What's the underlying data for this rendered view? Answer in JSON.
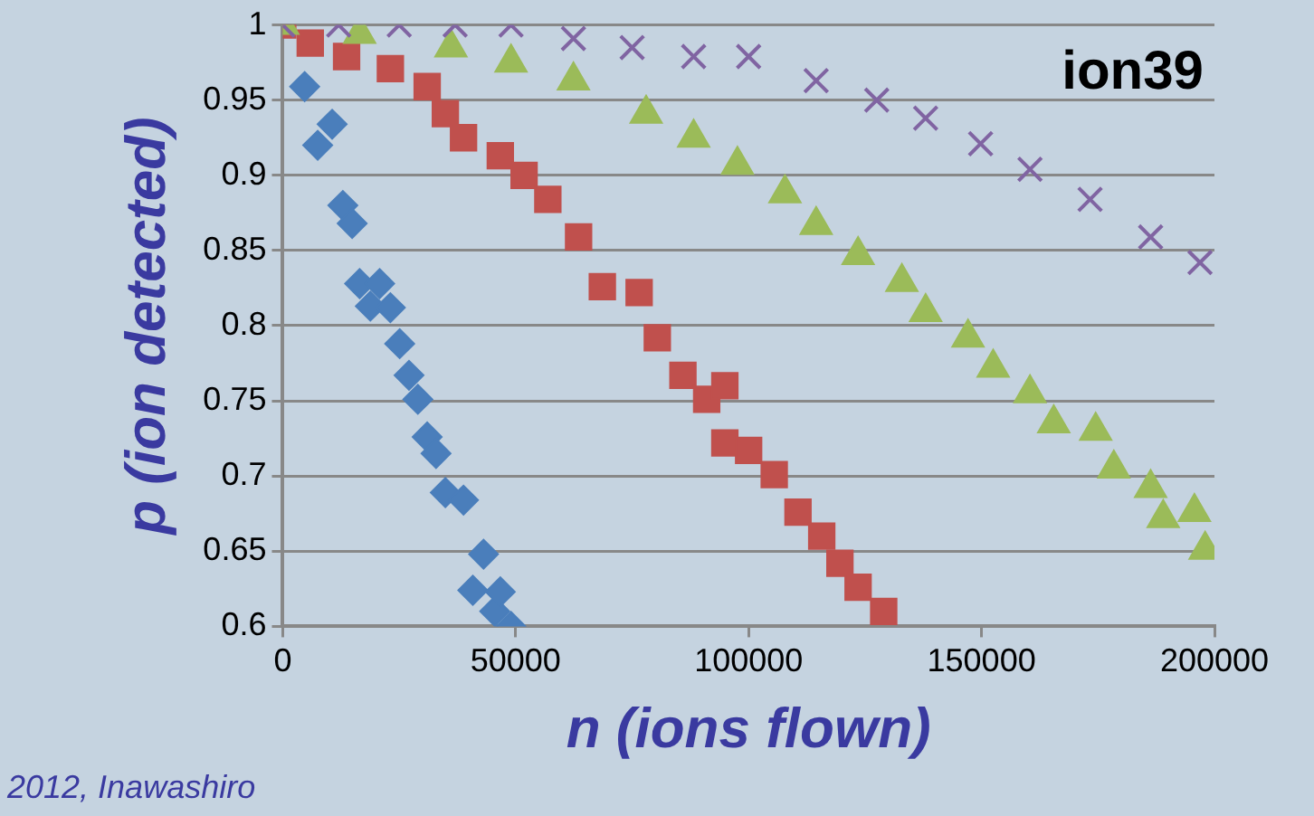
{
  "chart_data": {
    "type": "scatter",
    "title": "ion39",
    "xlabel": "n (ions flown)",
    "ylabel": "p (ion detected)",
    "annotations": [
      "2012, Inawashiro"
    ],
    "xlim": [
      0,
      200000
    ],
    "xticks": [
      0,
      50000,
      100000,
      150000,
      200000
    ],
    "ylim": [
      0.6,
      1
    ],
    "yticks": [
      0.6,
      0.65,
      0.7,
      0.75,
      0.8,
      0.85,
      0.9,
      0.95,
      1
    ],
    "grid": "y",
    "legend": false,
    "series": [
      {
        "color": "#4a7ebb",
        "marker": "diamond",
        "x": [
          4700,
          7500,
          10600,
          12900,
          14900,
          16500,
          18800,
          20800,
          23100,
          25100,
          27100,
          29000,
          31000,
          32900,
          34900,
          38800,
          40800,
          43100,
          45500,
          46700,
          49000
        ],
        "values": [
          0.959,
          0.92,
          0.934,
          0.88,
          0.868,
          0.828,
          0.813,
          0.828,
          0.812,
          0.788,
          0.767,
          0.751,
          0.726,
          0.715,
          0.689,
          0.684,
          0.624,
          0.648,
          0.61,
          0.623,
          0.6
        ]
      },
      {
        "color": "#c0504d",
        "marker": "square",
        "x": [
          0,
          5900,
          13700,
          23100,
          31000,
          34900,
          38800,
          46700,
          51800,
          56900,
          63500,
          68600,
          76500,
          80400,
          85900,
          91000,
          94900,
          94900,
          100000,
          105500,
          110600,
          115700,
          119600,
          123500,
          129000
        ],
        "values": [
          1,
          0.988,
          0.979,
          0.971,
          0.959,
          0.941,
          0.925,
          0.913,
          0.9,
          0.884,
          0.859,
          0.826,
          0.822,
          0.792,
          0.767,
          0.751,
          0.76,
          0.722,
          0.717,
          0.701,
          0.676,
          0.66,
          0.642,
          0.626,
          0.61
        ]
      },
      {
        "color": "#9bbb59",
        "marker": "triangle",
        "x": [
          0,
          16500,
          36100,
          49000,
          62400,
          78000,
          88200,
          97600,
          107800,
          114500,
          123500,
          132900,
          138000,
          147100,
          152500,
          160400,
          165500,
          174500,
          178400,
          186300,
          189000,
          195700,
          198000
        ],
        "values": [
          1,
          0.994,
          0.985,
          0.975,
          0.963,
          0.941,
          0.925,
          0.907,
          0.888,
          0.867,
          0.847,
          0.829,
          0.809,
          0.792,
          0.772,
          0.755,
          0.735,
          0.73,
          0.705,
          0.692,
          0.672,
          0.676,
          0.651
        ]
      },
      {
        "color": "#8064a2",
        "marker": "cross",
        "x": [
          0,
          12000,
          25000,
          37000,
          49000,
          62400,
          75000,
          88200,
          100000,
          114500,
          127500,
          138000,
          149800,
          160400,
          173300,
          186300,
          196900
        ],
        "values": [
          1,
          1,
          1,
          1,
          1,
          0.991,
          0.985,
          0.979,
          0.979,
          0.963,
          0.95,
          0.938,
          0.921,
          0.904,
          0.884,
          0.859,
          0.842
        ]
      }
    ]
  }
}
